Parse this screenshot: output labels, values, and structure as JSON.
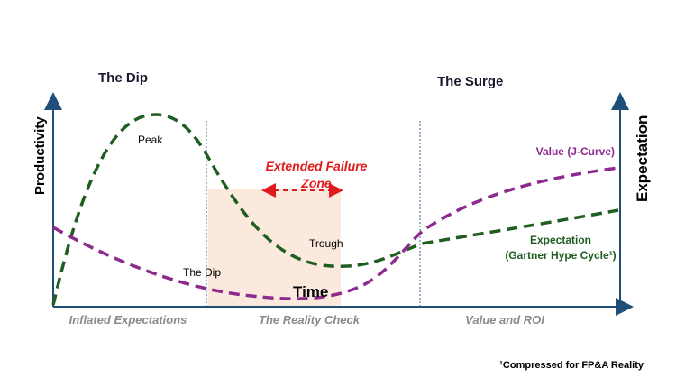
{
  "titles": {
    "left": "The Dip",
    "right": "The Surge"
  },
  "axes": {
    "left_label": "Productivity",
    "right_label": "Expectation",
    "bottom_label": "Time"
  },
  "phases": [
    {
      "label": "Inflated Expectations"
    },
    {
      "label": "The Reality Check"
    },
    {
      "label": "Value and ROI"
    }
  ],
  "annotations": {
    "peak": "Peak",
    "trough": "Trough",
    "dip": "The Dip",
    "failure_zone_line1": "Extended Failure",
    "failure_zone_line2": "Zone"
  },
  "legend": {
    "value_curve": "Value (J-Curve)",
    "expectation_line1": "Expectation",
    "expectation_line2": "(Gartner Hype Cycle¹)"
  },
  "footnote": "¹Compressed for FP&A Reality",
  "colors": {
    "axis": "#1f4e79",
    "expectation_curve": "#1e5e20",
    "value_curve": "#8e2a8e",
    "failure_zone_fill": "#fbe9dd",
    "failure_zone_text": "#e01b1b",
    "phase_label": "#8a8a8a",
    "divider": "#2e5d8a"
  }
}
